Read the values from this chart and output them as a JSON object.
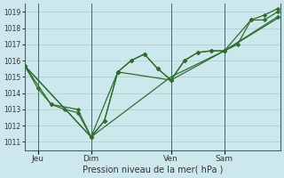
{
  "background_color": "#cce8ec",
  "grid_color": "#aacccc",
  "line_color": "#2d6e2d",
  "title": "Pression niveau de la mer( hPa )",
  "ylim": [
    1010.5,
    1019.5
  ],
  "yticks": [
    1011,
    1012,
    1013,
    1014,
    1015,
    1016,
    1017,
    1018,
    1019
  ],
  "xlim": [
    0,
    9.6
  ],
  "vlines": [
    0.5,
    2.5,
    5.5,
    7.5
  ],
  "xtick_positions": [
    0.5,
    2.5,
    5.5,
    7.5
  ],
  "xtick_labels": [
    "Jeu",
    "Dim",
    "Ven",
    "Sam"
  ],
  "series1_x": [
    0.0,
    0.5,
    1.0,
    1.5,
    2.0,
    2.5,
    3.0,
    3.5,
    4.0,
    4.5,
    5.0,
    5.5,
    6.0,
    6.5,
    7.0,
    7.5,
    8.0,
    8.5,
    9.0,
    9.5
  ],
  "series1_y": [
    1015.7,
    1014.3,
    1013.3,
    1013.0,
    1012.8,
    1011.3,
    1012.3,
    1015.3,
    1016.0,
    1016.4,
    1015.5,
    1014.8,
    1016.0,
    1016.5,
    1016.6,
    1016.6,
    1017.0,
    1018.5,
    1018.8,
    1019.2
  ],
  "series2_x": [
    0.0,
    1.0,
    2.0,
    2.5,
    3.0,
    3.5,
    4.0,
    4.5,
    5.0,
    5.5,
    6.0,
    6.5,
    7.0,
    7.5,
    8.5,
    9.0,
    9.5
  ],
  "series2_y": [
    1015.7,
    1013.3,
    1013.0,
    1011.3,
    1012.3,
    1015.3,
    1016.0,
    1016.4,
    1015.5,
    1014.8,
    1016.0,
    1016.5,
    1016.6,
    1016.6,
    1018.5,
    1018.5,
    1019.0
  ],
  "series3_x": [
    0.0,
    2.5,
    3.5,
    5.5,
    7.5,
    9.5
  ],
  "series3_y": [
    1015.7,
    1011.3,
    1015.3,
    1014.8,
    1016.6,
    1018.7
  ],
  "series4_x": [
    0.0,
    2.5,
    5.5,
    7.5,
    9.5
  ],
  "series4_y": [
    1015.7,
    1011.3,
    1015.0,
    1016.6,
    1018.6
  ]
}
